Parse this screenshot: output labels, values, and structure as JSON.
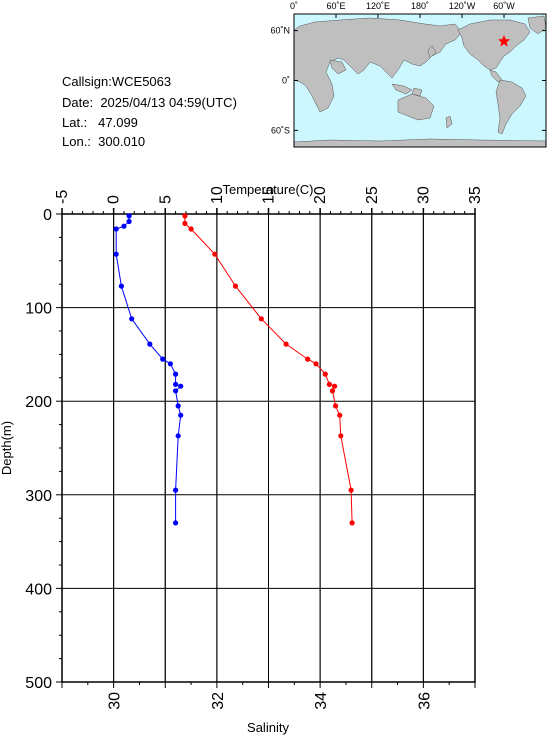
{
  "station": {
    "callsign_label": "Callsign:",
    "callsign": "WCE5063",
    "date_label": "Date:",
    "date": "2025/04/13 04:59(UTC)",
    "lat_label": "Lat.:",
    "lat": "47.099",
    "lon_label": "Lon.:",
    "lon": "300.010"
  },
  "map": {
    "top_ticks": [
      "0˚",
      "60˚E",
      "120˚E",
      "180˚",
      "120˚W",
      "60˚W"
    ],
    "lat_ticks": [
      "60˚N",
      "0˚",
      "60˚S"
    ],
    "ocean_color": "#ccf7ff",
    "land_color": "#bfbfbf",
    "marker": {
      "lon": 300.01,
      "lat": 47.099,
      "symbol": "star",
      "color": "#ff0000"
    }
  },
  "chart_data": {
    "type": "line",
    "temperature_axis": {
      "label": "Temperature(C)",
      "range": [
        -5,
        35
      ],
      "ticks": [
        -5,
        0,
        5,
        10,
        15,
        20,
        25,
        30,
        35
      ]
    },
    "salinity_axis": {
      "label": "Salinity",
      "range": [
        29,
        37
      ],
      "ticks": [
        30,
        32,
        34,
        36
      ]
    },
    "depth_axis": {
      "label": "Depth(m)",
      "range": [
        0,
        500
      ],
      "ticks": [
        0,
        100,
        200,
        300,
        400,
        500
      ],
      "inverted": true
    },
    "grid": true,
    "series": [
      {
        "color": "#ff0000",
        "axis": "temperature",
        "points": [
          {
            "x": 6.9,
            "y": 2
          },
          {
            "x": 6.9,
            "y": 10
          },
          {
            "x": 7.5,
            "y": 16
          },
          {
            "x": 9.8,
            "y": 43
          },
          {
            "x": 11.8,
            "y": 77
          },
          {
            "x": 14.3,
            "y": 112
          },
          {
            "x": 16.7,
            "y": 139
          },
          {
            "x": 18.8,
            "y": 155
          },
          {
            "x": 19.6,
            "y": 160
          },
          {
            "x": 20.5,
            "y": 171
          },
          {
            "x": 20.9,
            "y": 182
          },
          {
            "x": 21.4,
            "y": 184
          },
          {
            "x": 21.2,
            "y": 189
          },
          {
            "x": 21.5,
            "y": 205
          },
          {
            "x": 21.9,
            "y": 215
          },
          {
            "x": 22.0,
            "y": 237
          },
          {
            "x": 23.0,
            "y": 295
          },
          {
            "x": 23.1,
            "y": 330
          }
        ]
      },
      {
        "color": "#0000ff",
        "axis": "salinity",
        "points": [
          {
            "x": 30.3,
            "y": 2
          },
          {
            "x": 30.3,
            "y": 8
          },
          {
            "x": 30.2,
            "y": 13
          },
          {
            "x": 30.05,
            "y": 16
          },
          {
            "x": 30.05,
            "y": 43
          },
          {
            "x": 30.15,
            "y": 77
          },
          {
            "x": 30.35,
            "y": 112
          },
          {
            "x": 30.7,
            "y": 139
          },
          {
            "x": 30.95,
            "y": 155
          },
          {
            "x": 31.1,
            "y": 160
          },
          {
            "x": 31.2,
            "y": 171
          },
          {
            "x": 31.2,
            "y": 182
          },
          {
            "x": 31.3,
            "y": 184
          },
          {
            "x": 31.2,
            "y": 189
          },
          {
            "x": 31.25,
            "y": 205
          },
          {
            "x": 31.3,
            "y": 215
          },
          {
            "x": 31.25,
            "y": 237
          },
          {
            "x": 31.2,
            "y": 295
          },
          {
            "x": 31.2,
            "y": 330
          }
        ]
      }
    ]
  }
}
